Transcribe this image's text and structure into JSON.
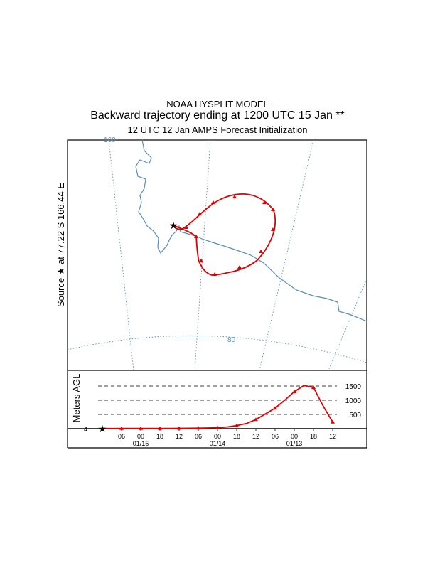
{
  "header": {
    "line1": "NOAA HYSPLIT MODEL",
    "line2": "Backward trajectory ending at 1200 UTC 15 Jan **",
    "line3": "12 UTC 12 Jan    AMPS  Forecast Initialization"
  },
  "source_label": "Source ★ at   77.22 S  166.44 E",
  "map": {
    "meridian_label": "160",
    "parallel_label": "80",
    "grid_color": "#5b8db8",
    "coast_color": "#5b8db8",
    "trajectory_color": "#e00000"
  },
  "chart_data": {
    "type": "line",
    "series_color": "#e00000",
    "height_panel": {
      "ylabel": "Meters AGL",
      "y_ticks": [
        500,
        1000,
        1500
      ],
      "start_height_label": "4",
      "x_tick_labels": [
        "06",
        "00",
        "18",
        "12",
        "06",
        "00",
        "18",
        "12",
        "06",
        "00",
        "18",
        "12"
      ],
      "date_labels": [
        "01/15",
        "01/14",
        "01/13"
      ],
      "hours_back": [
        0,
        3,
        6,
        9,
        12,
        15,
        18,
        21,
        24,
        27,
        30,
        33,
        36,
        39,
        42,
        45,
        48,
        51,
        54,
        57,
        60,
        63,
        66,
        69,
        72
      ],
      "height_m": [
        4,
        6,
        8,
        8,
        7,
        8,
        8,
        10,
        12,
        14,
        18,
        25,
        35,
        60,
        110,
        180,
        320,
        520,
        720,
        1000,
        1300,
        1520,
        1450,
        800,
        230
      ]
    }
  }
}
